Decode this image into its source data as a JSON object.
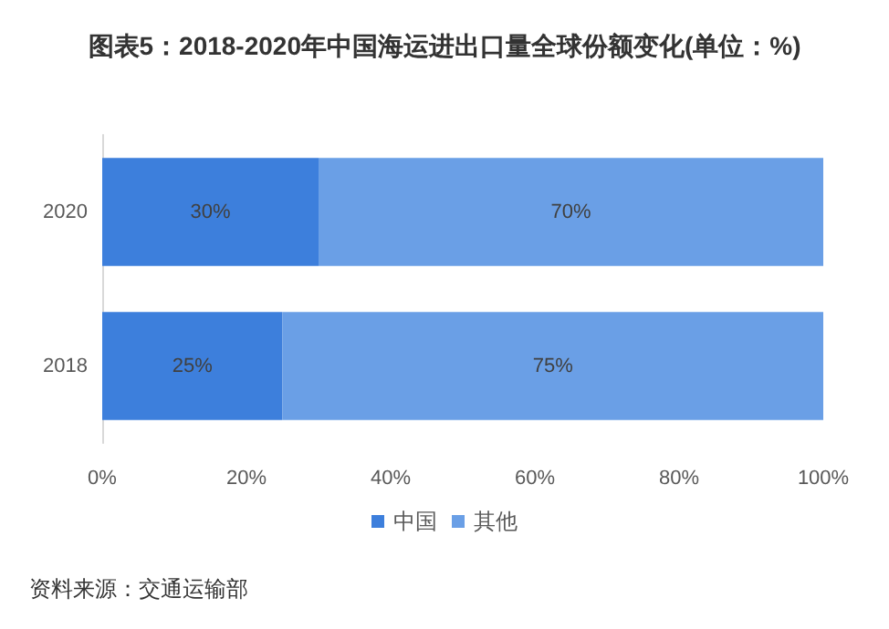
{
  "chart_data": {
    "type": "bar",
    "orientation": "horizontal",
    "stacked": true,
    "title": "图表5：2018-2020年中国海运进出口量全球份额变化(单位：%)",
    "categories": [
      "2020",
      "2018"
    ],
    "series": [
      {
        "name": "中国",
        "color": "#3d7fdc",
        "values": [
          30,
          25
        ],
        "value_labels": [
          "30%",
          "25%"
        ]
      },
      {
        "name": "其他",
        "color": "#6a9fe6",
        "values": [
          70,
          75
        ],
        "value_labels": [
          "70%",
          "75%"
        ]
      }
    ],
    "xlim": [
      0,
      100
    ],
    "xticks": [
      {
        "value": 0,
        "label": "0%"
      },
      {
        "value": 20,
        "label": "20%"
      },
      {
        "value": 40,
        "label": "40%"
      },
      {
        "value": 60,
        "label": "60%"
      },
      {
        "value": 80,
        "label": "80%"
      },
      {
        "value": 100,
        "label": "100%"
      }
    ],
    "grid": false,
    "legend": "bottom",
    "annotations": [
      "资料来源：交通运输部"
    ]
  }
}
